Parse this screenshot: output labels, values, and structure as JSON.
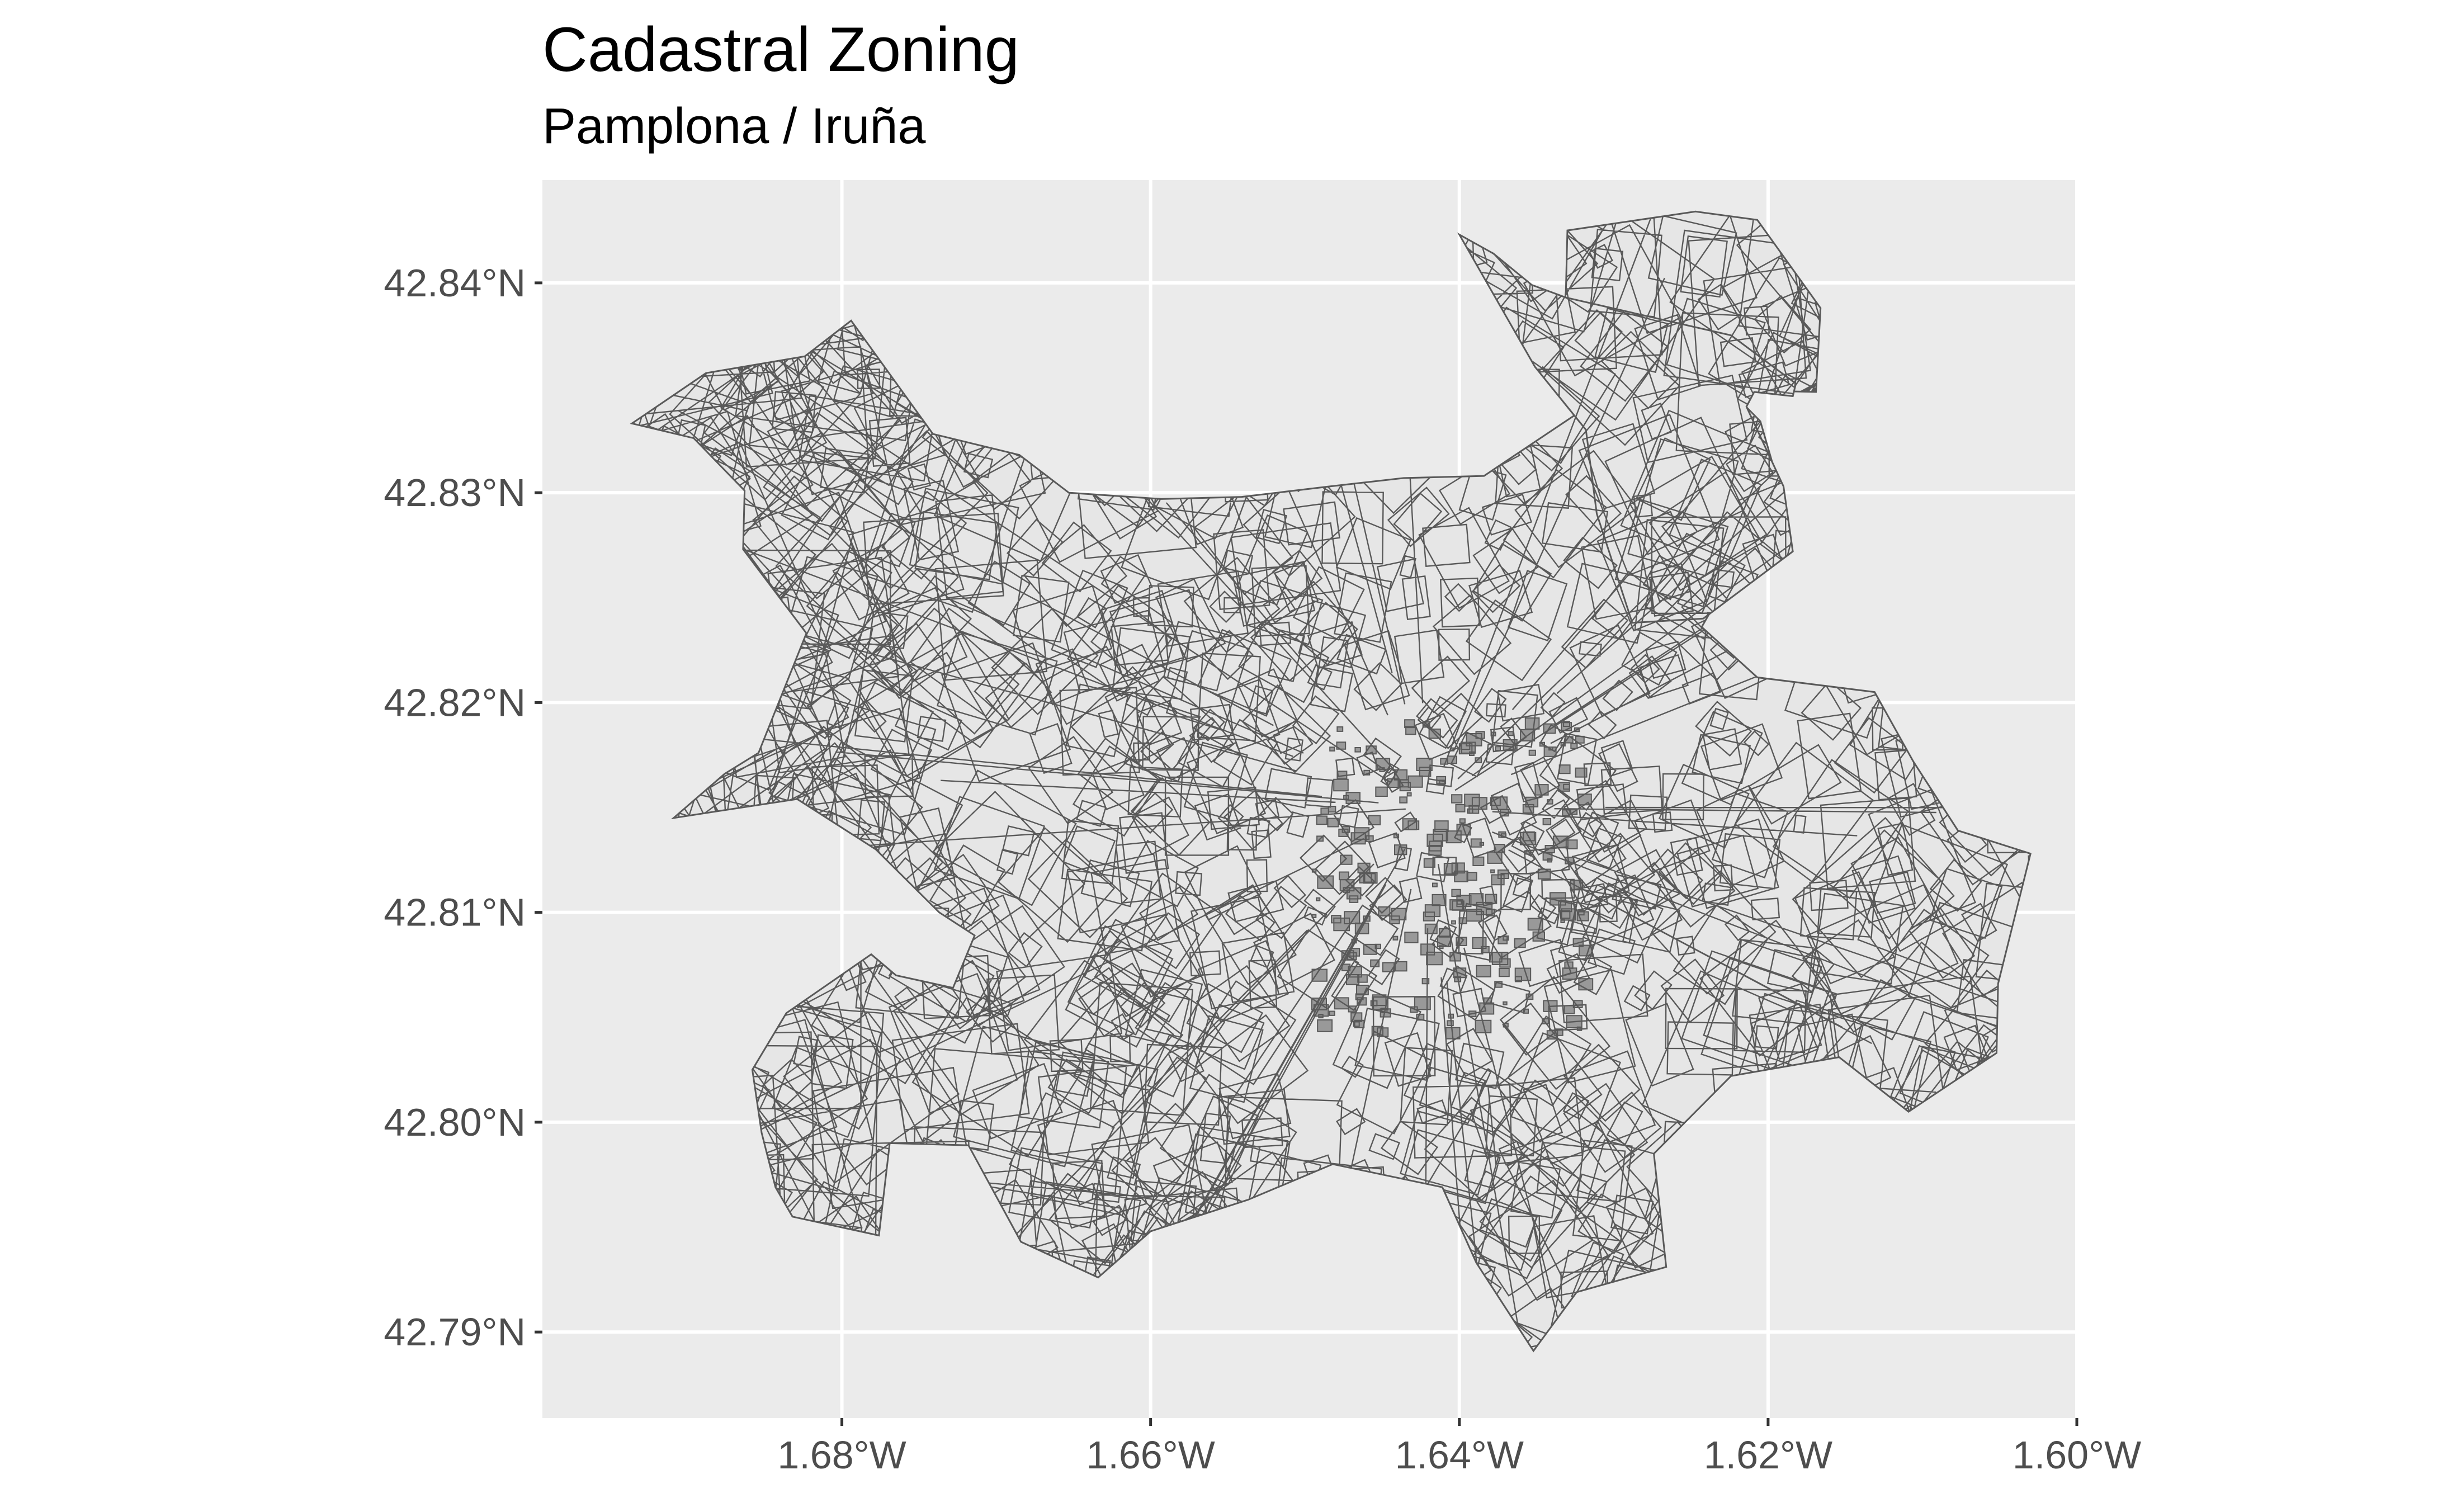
{
  "title": "Cadastral Zoning",
  "subtitle": "Pamplona / Iruña",
  "colors": {
    "panel_background": "#ebebeb",
    "gridline": "#ffffff",
    "polygon_fill": "#e6e6e6",
    "polygon_stroke": "#595959",
    "tick_text": "#4d4d4d"
  },
  "chart_data": {
    "type": "map",
    "projection": "geographic",
    "grid": true,
    "legend": "none",
    "xlim": [
      -1.6994,
      -1.6
    ],
    "ylim": [
      42.7859,
      42.8449
    ],
    "x_ticks": [
      {
        "value": -1.68,
        "label": "1.68°W"
      },
      {
        "value": -1.66,
        "label": "1.66°W"
      },
      {
        "value": -1.64,
        "label": "1.64°W"
      },
      {
        "value": -1.62,
        "label": "1.62°W"
      },
      {
        "value": -1.6,
        "label": "1.60°W"
      }
    ],
    "y_ticks": [
      {
        "value": 42.84,
        "label": "42.84°N"
      },
      {
        "value": 42.83,
        "label": "42.83°N"
      },
      {
        "value": 42.82,
        "label": "42.82°N"
      },
      {
        "value": 42.81,
        "label": "42.81°N"
      },
      {
        "value": 42.8,
        "label": "42.80°N"
      },
      {
        "value": 42.79,
        "label": "42.79°N"
      }
    ],
    "outline": [
      [
        -1.6936,
        42.8333
      ],
      [
        -1.6888,
        42.8357
      ],
      [
        -1.6824,
        42.8365
      ],
      [
        -1.6794,
        42.8382
      ],
      [
        -1.6741,
        42.8328
      ],
      [
        -1.6685,
        42.8318
      ],
      [
        -1.6653,
        42.83
      ],
      [
        -1.6593,
        42.8297
      ],
      [
        -1.6541,
        42.8298
      ],
      [
        -1.6484,
        42.8303
      ],
      [
        -1.6436,
        42.8307
      ],
      [
        -1.6384,
        42.8308
      ],
      [
        -1.6315,
        42.8342
      ],
      [
        -1.6335,
        42.8367
      ],
      [
        -1.6331,
        42.8396
      ],
      [
        -1.633,
        42.8425
      ],
      [
        -1.6247,
        42.8434
      ],
      [
        -1.6207,
        42.843
      ],
      [
        -1.6166,
        42.8388
      ],
      [
        -1.6169,
        42.8348
      ],
      [
        -1.6225,
        42.8349
      ],
      [
        -1.6205,
        42.8334
      ],
      [
        -1.6194,
        42.8306
      ],
      [
        -1.6215,
        42.8272
      ],
      [
        -1.6243,
        42.8236
      ],
      [
        -1.6207,
        42.8212
      ],
      [
        -1.6131,
        42.8205
      ],
      [
        -1.6106,
        42.8172
      ],
      [
        -1.6077,
        42.8139
      ],
      [
        -1.603,
        42.8128
      ],
      [
        -1.6051,
        42.8066
      ],
      [
        -1.6052,
        42.8033
      ],
      [
        -1.6109,
        42.8005
      ],
      [
        -1.6154,
        42.8031
      ],
      [
        -1.6224,
        42.8022
      ],
      [
        -1.6274,
        42.7985
      ],
      [
        -1.6266,
        42.7931
      ],
      [
        -1.6324,
        42.7919
      ],
      [
        -1.6352,
        42.7891
      ],
      [
        -1.6389,
        42.7933
      ],
      [
        -1.6411,
        42.7969
      ],
      [
        -1.6482,
        42.798
      ],
      [
        -1.6537,
        42.7963
      ],
      [
        -1.66,
        42.7948
      ],
      [
        -1.6634,
        42.7926
      ],
      [
        -1.6684,
        42.7943
      ],
      [
        -1.6718,
        42.7989
      ],
      [
        -1.6769,
        42.799
      ],
      [
        -1.6776,
        42.7946
      ],
      [
        -1.6832,
        42.7955
      ],
      [
        -1.6843,
        42.7969
      ],
      [
        -1.6852,
        42.7995
      ],
      [
        -1.6858,
        42.8025
      ],
      [
        -1.6836,
        42.8052
      ],
      [
        -1.6781,
        42.808
      ],
      [
        -1.6765,
        42.807
      ],
      [
        -1.6728,
        42.8064
      ],
      [
        -1.6714,
        42.8089
      ],
      [
        -1.6737,
        42.81
      ],
      [
        -1.6778,
        42.813
      ],
      [
        -1.6829,
        42.8154
      ],
      [
        -1.6909,
        42.8145
      ],
      [
        -1.6876,
        42.8166
      ],
      [
        -1.6854,
        42.8176
      ],
      [
        -1.6823,
        42.8233
      ],
      [
        -1.6864,
        42.8273
      ],
      [
        -1.6863,
        42.8301
      ],
      [
        -1.6896,
        42.8326
      ],
      [
        -1.6936,
        42.8333
      ]
    ],
    "north_annex": [
      [
        -1.64,
        42.8423
      ],
      [
        -1.6378,
        42.8414
      ],
      [
        -1.6353,
        42.8399
      ],
      [
        -1.6331,
        42.8393
      ],
      [
        -1.6224,
        42.8375
      ],
      [
        -1.6182,
        42.8352
      ],
      [
        -1.6184,
        42.8346
      ],
      [
        -1.6209,
        42.8348
      ],
      [
        -1.6214,
        42.8341
      ],
      [
        -1.619,
        42.8303
      ],
      [
        -1.6184,
        42.8272
      ],
      [
        -1.6242,
        42.824
      ],
      [
        -1.6288,
        42.8238
      ],
      [
        -1.6311,
        42.829
      ],
      [
        -1.6318,
        42.833
      ],
      [
        -1.6351,
        42.836
      ],
      [
        -1.64,
        42.8423
      ]
    ],
    "annotations": []
  }
}
